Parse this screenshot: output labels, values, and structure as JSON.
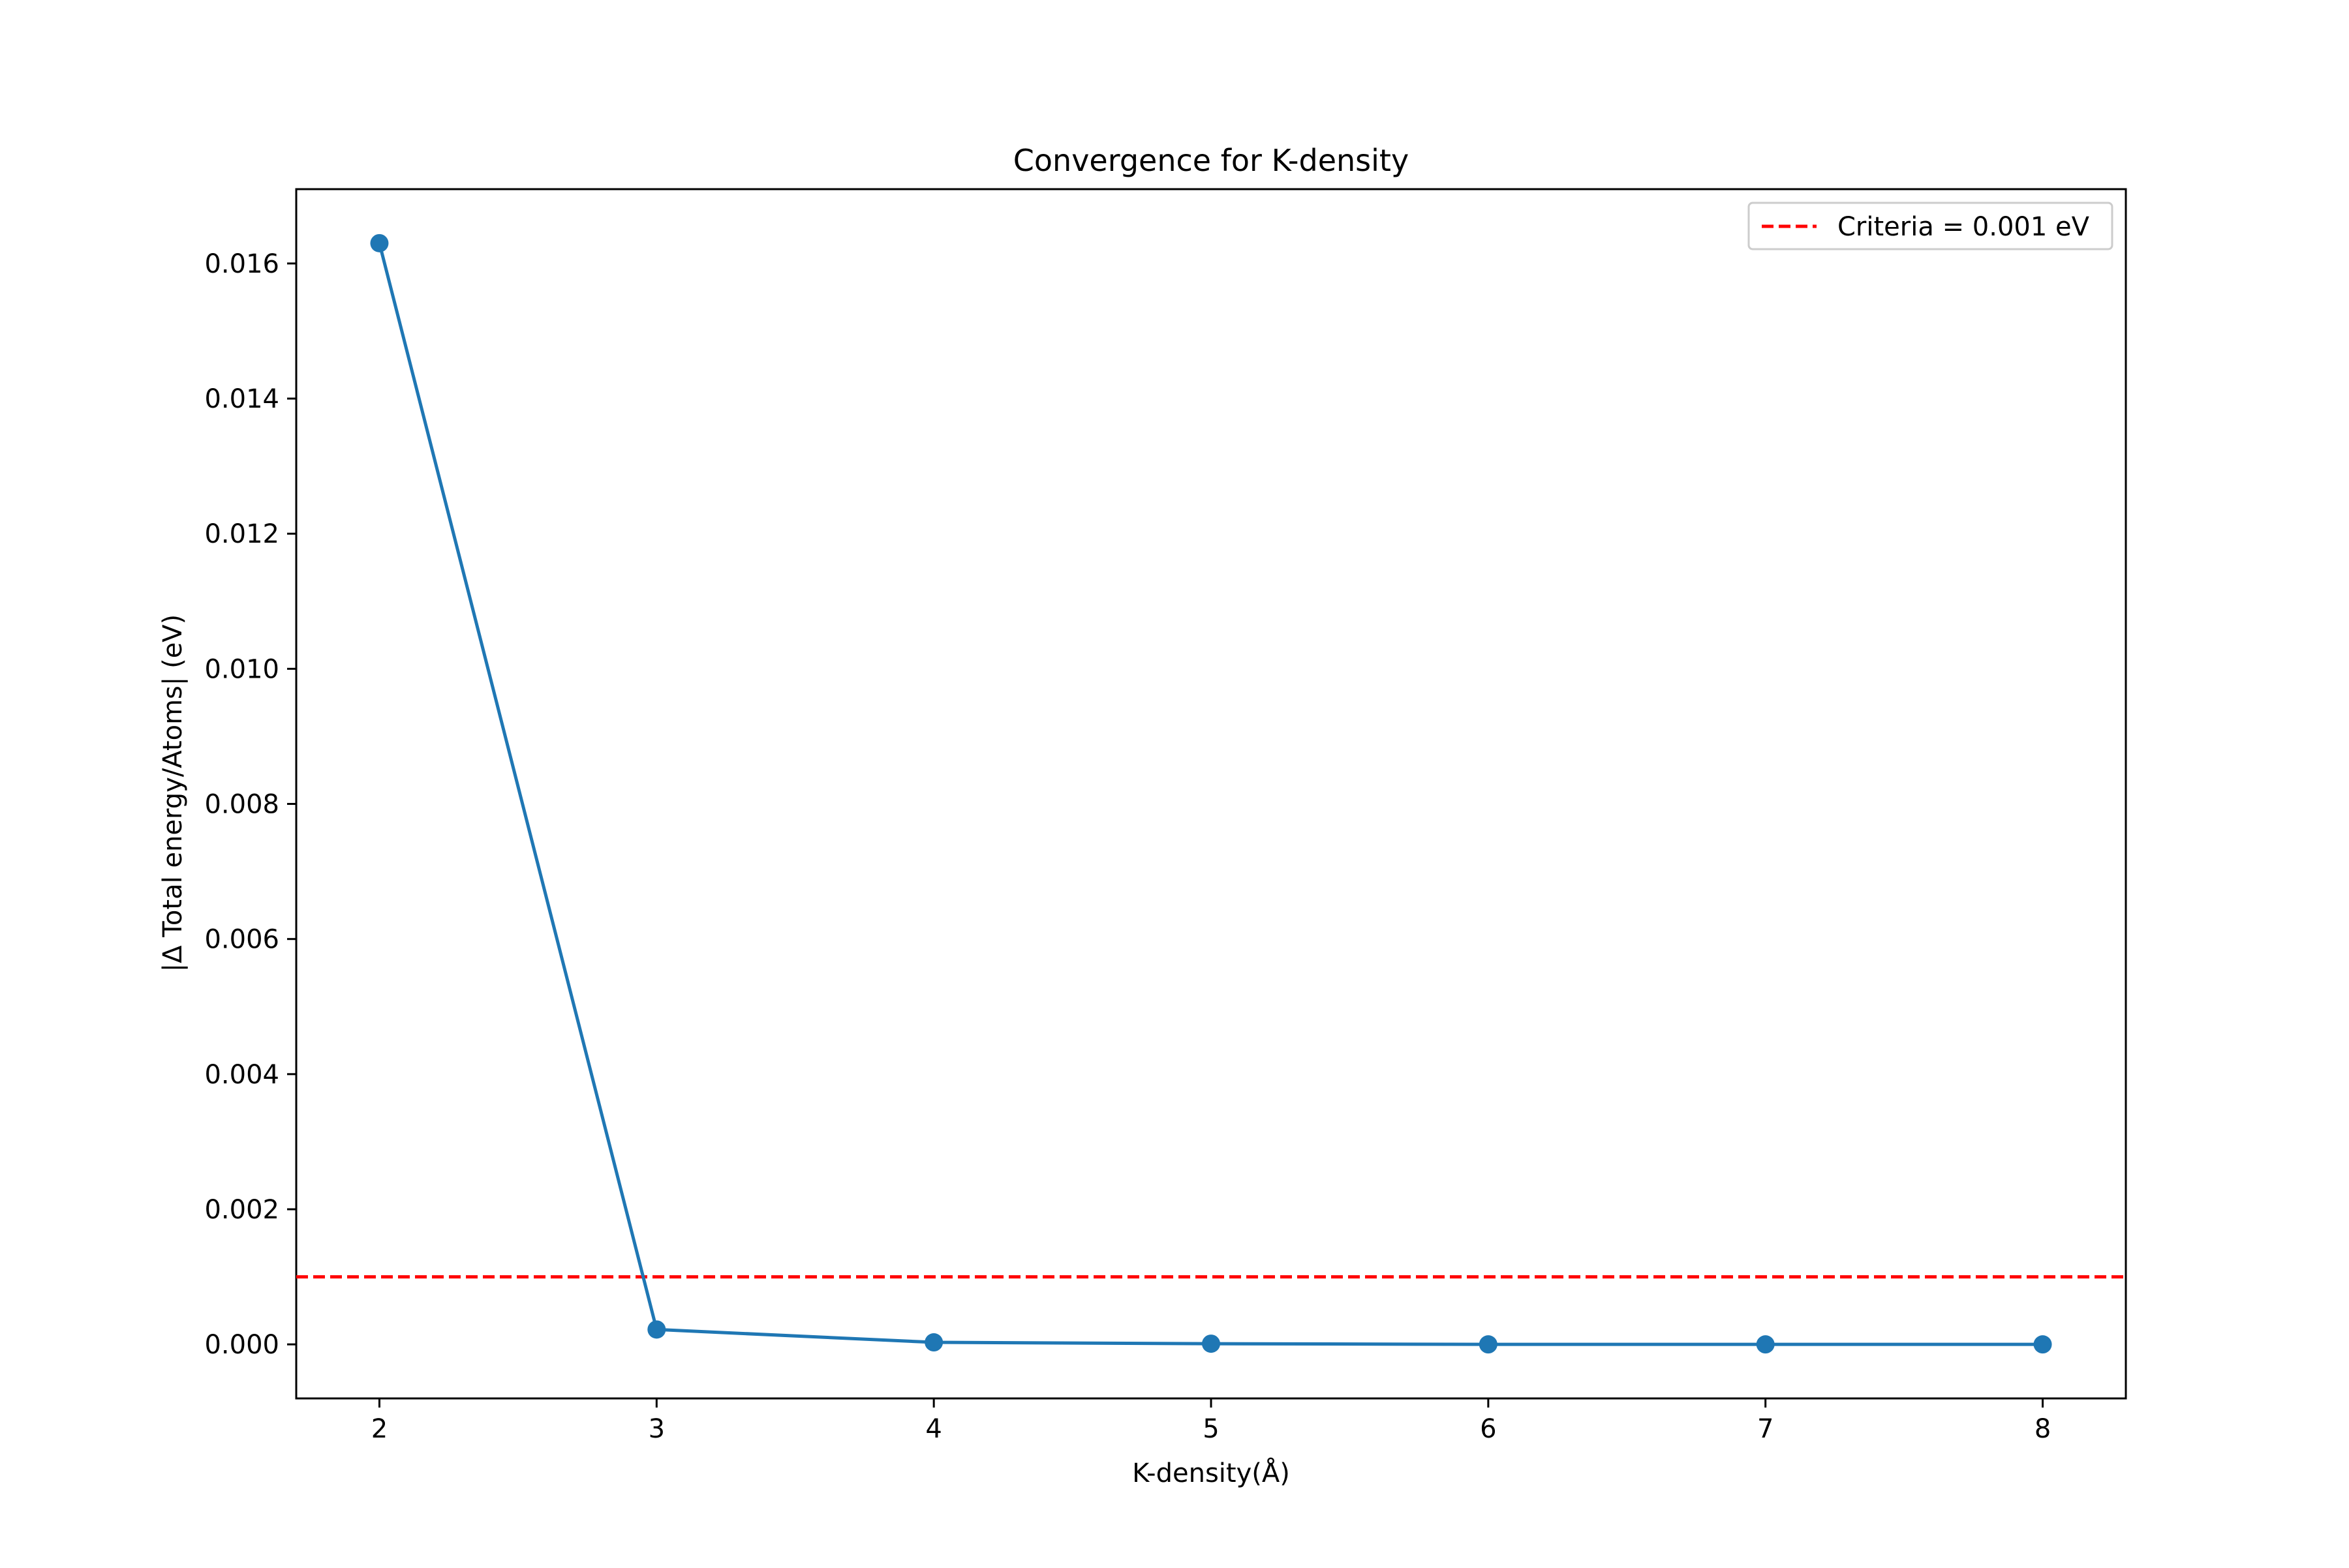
{
  "chart_data": {
    "type": "line",
    "title": "Convergence for K-density",
    "xlabel": "K-density(Å)",
    "ylabel": "|Δ Total energy/Atoms| (eV)",
    "x": [
      2,
      3,
      4,
      5,
      6,
      7,
      8
    ],
    "xticks": [
      "2",
      "3",
      "4",
      "5",
      "6",
      "7",
      "8"
    ],
    "yticks": [
      "0.000",
      "0.002",
      "0.004",
      "0.006",
      "0.008",
      "0.010",
      "0.012",
      "0.014",
      "0.016"
    ],
    "xlim": [
      1.7,
      8.3
    ],
    "ylim": [
      -0.0008,
      0.0171
    ],
    "grid": false,
    "legend_position": "top-right",
    "series": [
      {
        "values": [
          0.0163,
          0.00022,
          3e-05,
          1e-05,
          0.0,
          0.0,
          0.0
        ],
        "color": "#1f77b4",
        "marker": "circle"
      }
    ],
    "reference_line": {
      "name": "Criteria = 0.001 eV",
      "y": 0.001,
      "color": "#ff0000",
      "style": "dashed"
    }
  }
}
